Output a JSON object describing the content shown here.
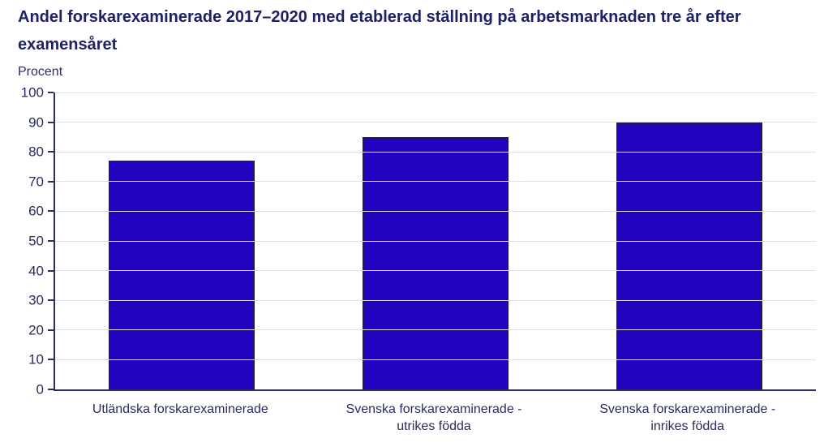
{
  "page": {
    "background": "#ffffff"
  },
  "header": {
    "title": "Andel forskarexaminerade 2017–2020 med etablerad ställning på arbetsmarknaden tre år efter examensåret"
  },
  "chart_data": {
    "type": "bar",
    "title": "Andel forskarexaminerade 2017–2020 med etablerad ställning på arbetsmarknaden tre år efter examensåret",
    "ylabel": "Procent",
    "xlabel": "",
    "categories": [
      "Utländska forskarexaminerade",
      "Svenska forskarexaminerade - utrikes födda",
      "Svenska forskarexaminerade - inrikes födda"
    ],
    "category_lines": [
      [
        "Utländska forskarexaminerade"
      ],
      [
        "Svenska forskarexaminerade -",
        "utrikes födda"
      ],
      [
        "Svenska forskarexaminerade -",
        "inrikes födda"
      ]
    ],
    "values": [
      77,
      85,
      90
    ],
    "ylim": [
      0,
      100
    ],
    "yticks": [
      0,
      10,
      20,
      30,
      40,
      50,
      60,
      70,
      80,
      90,
      100
    ],
    "grid": true,
    "legend": "none",
    "colors": {
      "bar_fill": "#2203c0",
      "bar_border": "#1e1666",
      "gridline": "#dfe0ee",
      "axis": "#2a2f62",
      "text": "#2a2d5e",
      "title_text": "#1d2166"
    }
  }
}
